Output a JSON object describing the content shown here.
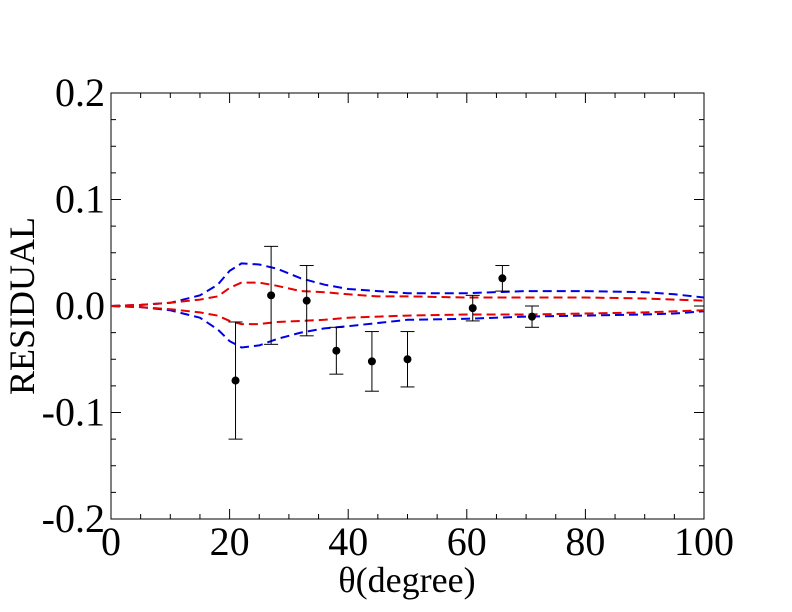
{
  "chart_data": {
    "type": "scatter",
    "title": "",
    "xlabel": "θ(degree)",
    "ylabel": "RESIDUAL",
    "xlim": [
      0,
      100
    ],
    "ylim": [
      -0.2,
      0.2
    ],
    "xticks": [
      0,
      20,
      40,
      60,
      80,
      100
    ],
    "xtick_labels": [
      "0",
      "20",
      "40",
      "60",
      "80",
      "100"
    ],
    "yticks": [
      -0.2,
      -0.1,
      0.0,
      0.1,
      0.2
    ],
    "ytick_labels": [
      "-0.2",
      "-0.1",
      "0.0",
      "0.1",
      "0.2"
    ],
    "grid": false,
    "legend": "none",
    "points": {
      "color": "#000000",
      "x": [
        21,
        27,
        33,
        38,
        44,
        50,
        61,
        66,
        71
      ],
      "y": [
        -0.07,
        0.01,
        0.005,
        -0.042,
        -0.052,
        -0.05,
        -0.002,
        0.026,
        -0.01
      ],
      "err": [
        0.055,
        0.046,
        0.033,
        0.022,
        0.028,
        0.026,
        0.012,
        0.012,
        0.01
      ]
    },
    "bands": [
      {
        "color": "#0000e6",
        "upper": {
          "x": [
            0,
            5,
            10,
            15,
            18,
            20,
            22,
            25,
            28,
            32,
            36,
            40,
            45,
            50,
            60,
            70,
            80,
            90,
            95,
            100
          ],
          "y": [
            0,
            0.001,
            0.003,
            0.01,
            0.02,
            0.033,
            0.04,
            0.039,
            0.035,
            0.026,
            0.02,
            0.016,
            0.014,
            0.012,
            0.012,
            0.014,
            0.014,
            0.013,
            0.011,
            0.008
          ]
        },
        "lower": {
          "x": [
            0,
            5,
            10,
            15,
            18,
            20,
            22,
            25,
            28,
            32,
            36,
            40,
            45,
            50,
            60,
            70,
            80,
            90,
            95,
            100
          ],
          "y": [
            0,
            -0.001,
            -0.004,
            -0.011,
            -0.022,
            -0.033,
            -0.039,
            -0.037,
            -0.031,
            -0.025,
            -0.021,
            -0.019,
            -0.016,
            -0.013,
            -0.012,
            -0.01,
            -0.009,
            -0.008,
            -0.007,
            -0.005
          ]
        }
      },
      {
        "color": "#e60000",
        "upper": {
          "x": [
            0,
            5,
            10,
            15,
            18,
            20,
            22,
            25,
            28,
            32,
            36,
            40,
            45,
            50,
            60,
            70,
            80,
            90,
            95,
            100
          ],
          "y": [
            0,
            0.001,
            0.003,
            0.006,
            0.009,
            0.017,
            0.022,
            0.022,
            0.019,
            0.014,
            0.013,
            0.011,
            0.009,
            0.009,
            0.008,
            0.008,
            0.008,
            0.007,
            0.006,
            0.005
          ]
        },
        "lower": {
          "x": [
            0,
            5,
            10,
            15,
            18,
            20,
            22,
            25,
            28,
            32,
            36,
            40,
            45,
            50,
            60,
            70,
            80,
            90,
            95,
            100
          ],
          "y": [
            0,
            -0.001,
            -0.003,
            -0.006,
            -0.009,
            -0.014,
            -0.017,
            -0.017,
            -0.015,
            -0.014,
            -0.013,
            -0.011,
            -0.01,
            -0.009,
            -0.008,
            -0.008,
            -0.007,
            -0.006,
            -0.005,
            -0.004
          ]
        }
      }
    ]
  }
}
